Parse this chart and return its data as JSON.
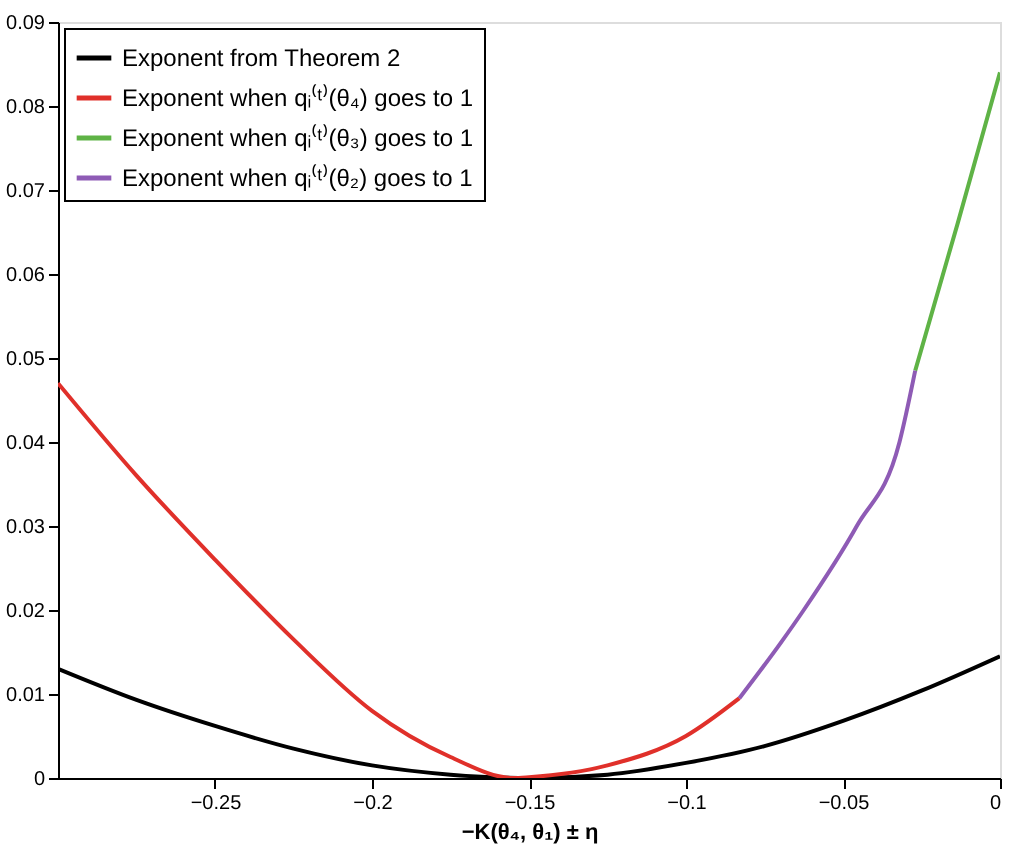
{
  "chart_data": {
    "type": "line",
    "xlabel": "−K(θ₄, θ₁) ± η",
    "xlim": [
      -0.3,
      0
    ],
    "xticks": [
      -0.25,
      -0.2,
      -0.15,
      -0.1,
      -0.05,
      0
    ],
    "ylim": [
      0,
      0.09
    ],
    "yticks": [
      0,
      0.01,
      0.02,
      0.03,
      0.04,
      0.05,
      0.06,
      0.07,
      0.08,
      0.09
    ],
    "grid": false,
    "legend": "top left",
    "marker": "none",
    "line_style": "solid",
    "series": [
      {
        "name": "Exponent from Theorem 2",
        "color": "#000000",
        "x": [
          -0.3,
          -0.275,
          -0.25,
          -0.225,
          -0.2,
          -0.175,
          -0.15,
          -0.125,
          -0.1,
          -0.075,
          -0.05,
          -0.025,
          0
        ],
        "values": [
          0.013,
          0.0093,
          0.0062,
          0.0035,
          0.0015,
          0.0004,
          0,
          0.0004,
          0.0018,
          0.0038,
          0.0068,
          0.0104,
          0.0145
        ]
      },
      {
        "name": "Exponent when qᵢ⁽ᵗ⁾(θ₄) goes to 1",
        "color": "#e0302a",
        "x": [
          -0.3,
          -0.275,
          -0.25,
          -0.225,
          -0.2,
          -0.175,
          -0.155,
          -0.15,
          -0.125,
          -0.1,
          -0.083
        ],
        "values": [
          0.047,
          0.036,
          0.026,
          0.0165,
          0.008,
          0.0025,
          0,
          0.0001,
          0.0015,
          0.005,
          0.0095
        ]
      },
      {
        "name": "Exponent when qᵢ⁽ᵗ⁾(θ₃) goes to 1",
        "color": "#5fb346",
        "x": [
          -0.027,
          -0.0135,
          0
        ],
        "values": [
          0.0485,
          0.066,
          0.084
        ]
      },
      {
        "name": "Exponent when qᵢ⁽ᵗ⁾(θ₂) goes to 1",
        "color": "#8e5bb5",
        "x": [
          -0.083,
          -0.07,
          -0.0625,
          -0.0456,
          -0.032,
          -0.027
        ],
        "values": [
          0.0095,
          0.016,
          0.02,
          0.03,
          0.04,
          0.0485
        ]
      }
    ]
  }
}
